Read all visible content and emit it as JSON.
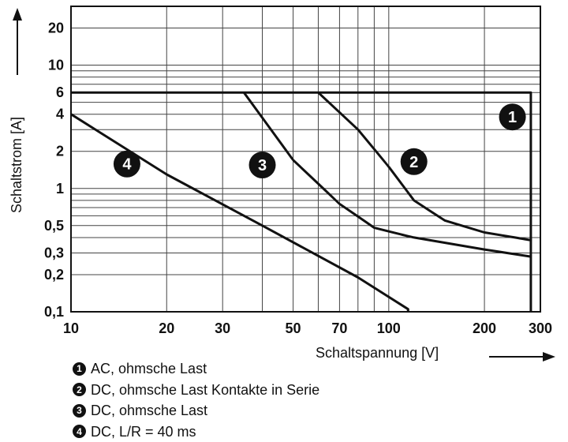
{
  "chart_data": {
    "type": "line",
    "x_scale": "log",
    "y_scale": "log",
    "xlim": [
      10,
      300
    ],
    "ylim": [
      0.1,
      30
    ],
    "grid": true,
    "xlabel": "Schaltspannung [V]",
    "ylabel": "Schaltstrom [A]",
    "x_ticks": [
      {
        "value": 10,
        "label": "10"
      },
      {
        "value": 20,
        "label": "20"
      },
      {
        "value": 30,
        "label": "30"
      },
      {
        "value": 50,
        "label": "50"
      },
      {
        "value": 70,
        "label": "70"
      },
      {
        "value": 100,
        "label": "100"
      },
      {
        "value": 200,
        "label": "200"
      },
      {
        "value": 300,
        "label": "300"
      }
    ],
    "y_ticks": [
      {
        "value": 20,
        "label": "20"
      },
      {
        "value": 10,
        "label": "10"
      },
      {
        "value": 6,
        "label": "6"
      },
      {
        "value": 4,
        "label": "4"
      },
      {
        "value": 2,
        "label": "2"
      },
      {
        "value": 1,
        "label": "1"
      },
      {
        "value": 0.5,
        "label": "0,5"
      },
      {
        "value": 0.3,
        "label": "0,3"
      },
      {
        "value": 0.2,
        "label": "0,2"
      },
      {
        "value": 0.1,
        "label": "0,1"
      }
    ],
    "series": [
      {
        "marker": "1",
        "x": [
          10,
          280,
          280
        ],
        "y": [
          6,
          6,
          0.1
        ]
      },
      {
        "marker": "2",
        "x": [
          60,
          80,
          100,
          120,
          150,
          200,
          280
        ],
        "y": [
          6,
          3,
          1.5,
          0.8,
          0.55,
          0.44,
          0.38
        ]
      },
      {
        "marker": "3",
        "x": [
          35,
          50,
          70,
          90,
          120,
          200,
          280
        ],
        "y": [
          6,
          1.7,
          0.75,
          0.48,
          0.4,
          0.32,
          0.28
        ]
      },
      {
        "marker": "4",
        "x": [
          10,
          20,
          40,
          80,
          115,
          115
        ],
        "y": [
          4,
          1.3,
          0.5,
          0.19,
          0.105,
          0.1
        ]
      }
    ],
    "markers": [
      {
        "label": "1",
        "x": 245,
        "y": 3.8
      },
      {
        "label": "2",
        "x": 120,
        "y": 1.65
      },
      {
        "label": "3",
        "x": 40,
        "y": 1.55
      },
      {
        "label": "4",
        "x": 15,
        "y": 1.58
      }
    ],
    "legend": [
      {
        "badge": "1",
        "text": "AC, ohmsche Last"
      },
      {
        "badge": "2",
        "text": "DC, ohmsche Last Kontakte in Serie"
      },
      {
        "badge": "3",
        "text": "DC, ohmsche Last"
      },
      {
        "badge": "4",
        "text": "DC, L/R = 40 ms"
      }
    ]
  }
}
